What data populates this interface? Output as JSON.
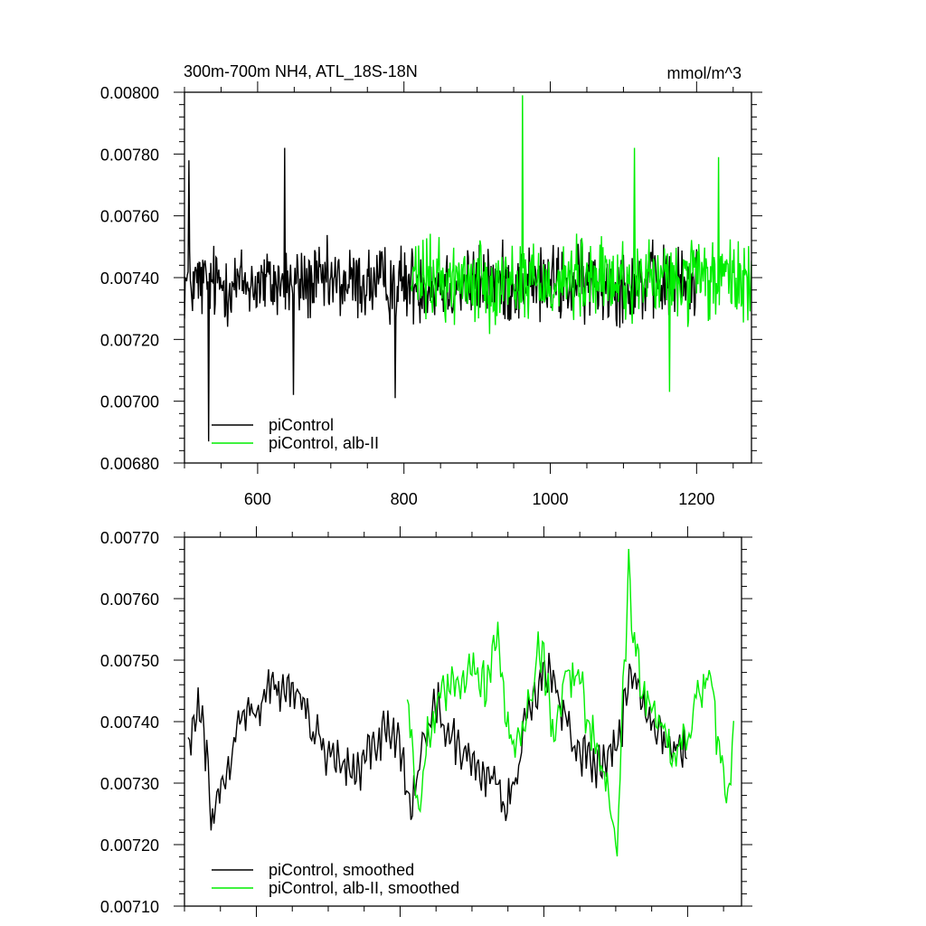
{
  "chart_data": [
    {
      "type": "line",
      "title": "300m-700m NH4, ATL_18S-18N",
      "units": "mmol/m^3",
      "xlim": [
        500,
        1275
      ],
      "ylim": [
        0.0068,
        0.008
      ],
      "x_ticks": [
        600,
        800,
        1000,
        1200
      ],
      "y_ticks": [
        "0.00680",
        "0.00700",
        "0.00720",
        "0.00740",
        "0.00760",
        "0.00780",
        "0.00800"
      ],
      "y_tick_values": [
        0.0068,
        0.007,
        0.0072,
        0.0074,
        0.0076,
        0.0078,
        0.008
      ],
      "legend_position": "bottom-left",
      "series": [
        {
          "name": "piControl",
          "color": "#000000",
          "x_range": [
            500,
            1200
          ],
          "mean": 0.00738,
          "noise_amplitude": 0.00016,
          "notable_points": [
            [
              533,
              0.00687
            ],
            [
              506,
              0.00778
            ],
            [
              637,
              0.00782
            ],
            [
              649,
              0.00702
            ],
            [
              788,
              0.00701
            ]
          ]
        },
        {
          "name": "piControl, alb-II",
          "color": "#00ee00",
          "x_range": [
            810,
            1275
          ],
          "mean": 0.00739,
          "noise_amplitude": 0.00017,
          "notable_points": [
            [
              962,
              0.00799
            ],
            [
              1115,
              0.00782
            ],
            [
              1163,
              0.00703
            ],
            [
              1230,
              0.00779
            ]
          ]
        }
      ]
    },
    {
      "type": "line",
      "title": "",
      "xlim": [
        500,
        1275
      ],
      "ylim": [
        0.0071,
        0.0077
      ],
      "x_ticks": [
        600,
        800,
        1000,
        1200
      ],
      "y_ticks": [
        "0.00710",
        "0.00720",
        "0.00730",
        "0.00740",
        "0.00750",
        "0.00760",
        "0.00770"
      ],
      "y_tick_values": [
        0.0071,
        0.0072,
        0.0073,
        0.0074,
        0.0075,
        0.0076,
        0.0077
      ],
      "legend_position": "bottom-left",
      "series": [
        {
          "name": "piControl, smoothed",
          "color": "#000000",
          "x_range": [
            505,
            1200
          ],
          "anchors": [
            [
              505,
              0.00737
            ],
            [
              520,
              0.00742
            ],
            [
              530,
              0.00735
            ],
            [
              538,
              0.00722
            ],
            [
              548,
              0.0073
            ],
            [
              560,
              0.00732
            ],
            [
              575,
              0.0074
            ],
            [
              600,
              0.00742
            ],
            [
              620,
              0.00746
            ],
            [
              640,
              0.00744
            ],
            [
              660,
              0.00745
            ],
            [
              680,
              0.00738
            ],
            [
              700,
              0.00735
            ],
            [
              720,
              0.00733
            ],
            [
              740,
              0.00732
            ],
            [
              760,
              0.00735
            ],
            [
              780,
              0.00738
            ],
            [
              800,
              0.00736
            ],
            [
              815,
              0.00726
            ],
            [
              835,
              0.00738
            ],
            [
              850,
              0.00743
            ],
            [
              870,
              0.00737
            ],
            [
              890,
              0.00735
            ],
            [
              910,
              0.00732
            ],
            [
              930,
              0.00731
            ],
            [
              945,
              0.00727
            ],
            [
              960,
              0.0073
            ],
            [
              980,
              0.00742
            ],
            [
              1000,
              0.00747
            ],
            [
              1010,
              0.00748
            ],
            [
              1030,
              0.0074
            ],
            [
              1050,
              0.00735
            ],
            [
              1070,
              0.00733
            ],
            [
              1090,
              0.00735
            ],
            [
              1105,
              0.00738
            ],
            [
              1120,
              0.00748
            ],
            [
              1140,
              0.00742
            ],
            [
              1160,
              0.00738
            ],
            [
              1180,
              0.00736
            ],
            [
              1200,
              0.00735
            ]
          ]
        },
        {
          "name": "piControl, alb-II, smoothed",
          "color": "#00ee00",
          "x_range": [
            810,
            1265
          ],
          "anchors": [
            [
              810,
              0.00743
            ],
            [
              825,
              0.00727
            ],
            [
              840,
              0.00738
            ],
            [
              860,
              0.00744
            ],
            [
              880,
              0.00747
            ],
            [
              900,
              0.00749
            ],
            [
              920,
              0.00746
            ],
            [
              935,
              0.00755
            ],
            [
              950,
              0.00738
            ],
            [
              965,
              0.00736
            ],
            [
              980,
              0.00743
            ],
            [
              995,
              0.00752
            ],
            [
              1015,
              0.00738
            ],
            [
              1030,
              0.00748
            ],
            [
              1050,
              0.00747
            ],
            [
              1065,
              0.00738
            ],
            [
              1085,
              0.00732
            ],
            [
              1095,
              0.00723
            ],
            [
              1102,
              0.0072
            ],
            [
              1112,
              0.00748
            ],
            [
              1118,
              0.00765
            ],
            [
              1125,
              0.00752
            ],
            [
              1140,
              0.00745
            ],
            [
              1160,
              0.0074
            ],
            [
              1180,
              0.00735
            ],
            [
              1200,
              0.00738
            ],
            [
              1215,
              0.00744
            ],
            [
              1230,
              0.00747
            ],
            [
              1245,
              0.00736
            ],
            [
              1255,
              0.00728
            ],
            [
              1265,
              0.00737
            ]
          ]
        }
      ]
    }
  ]
}
